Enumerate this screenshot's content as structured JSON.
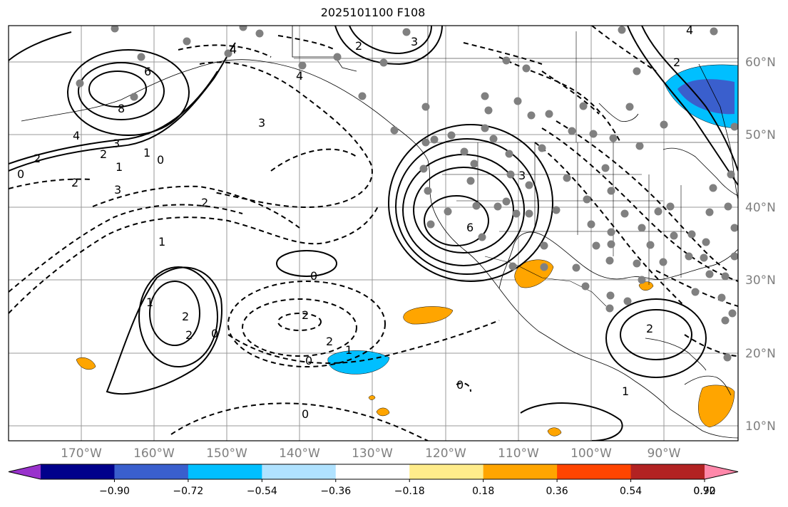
{
  "title": "2025101100 F108",
  "map": {
    "lat_labels": [
      "60°N",
      "50°N",
      "40°N",
      "30°N",
      "20°N",
      "10°N"
    ],
    "lon_labels": [
      "170°W",
      "160°W",
      "150°W",
      "140°W",
      "130°W",
      "120°W",
      "110°W",
      "100°W",
      "90°W"
    ],
    "contour_labels": [
      {
        "text": "6"
      },
      {
        "text": "8"
      },
      {
        "text": "4"
      },
      {
        "text": "3"
      },
      {
        "text": "2"
      },
      {
        "text": "1"
      },
      {
        "text": "0"
      },
      {
        "text": "2"
      },
      {
        "text": "1"
      },
      {
        "text": "3"
      },
      {
        "text": "2"
      },
      {
        "text": "4"
      },
      {
        "text": "3"
      },
      {
        "text": "2"
      },
      {
        "text": "0"
      },
      {
        "text": "4"
      },
      {
        "text": "3"
      },
      {
        "text": "2"
      },
      {
        "text": "6"
      },
      {
        "text": "3"
      },
      {
        "text": "0"
      },
      {
        "text": "2"
      },
      {
        "text": "1"
      },
      {
        "text": "0"
      },
      {
        "text": "2"
      },
      {
        "text": "1"
      },
      {
        "text": "2"
      },
      {
        "text": "0"
      },
      {
        "text": "1"
      },
      {
        "text": "2"
      },
      {
        "text": "0"
      },
      {
        "text": "0"
      },
      {
        "text": "2"
      },
      {
        "text": "1"
      },
      {
        "text": "2"
      },
      {
        "text": "4"
      }
    ],
    "colors": {
      "gray_dot": "#808080",
      "orange": "#ffa500",
      "light_blue": "#00bfff",
      "blue": "#3a5fcd"
    }
  },
  "colorbar": {
    "tick_labels": [
      "−0.90",
      "−0.72",
      "−0.54",
      "−0.36",
      "−0.18",
      "0.18",
      "0.36",
      "0.54",
      "0.72",
      "0.90"
    ],
    "colors": [
      "#9932cc",
      "#00008b",
      "#3a5fcd",
      "#00bfff",
      "#b0e2ff",
      "#ffffff",
      "#ffec8b",
      "#ffa500",
      "#ff4500",
      "#b22222",
      "#ff88aa"
    ]
  }
}
